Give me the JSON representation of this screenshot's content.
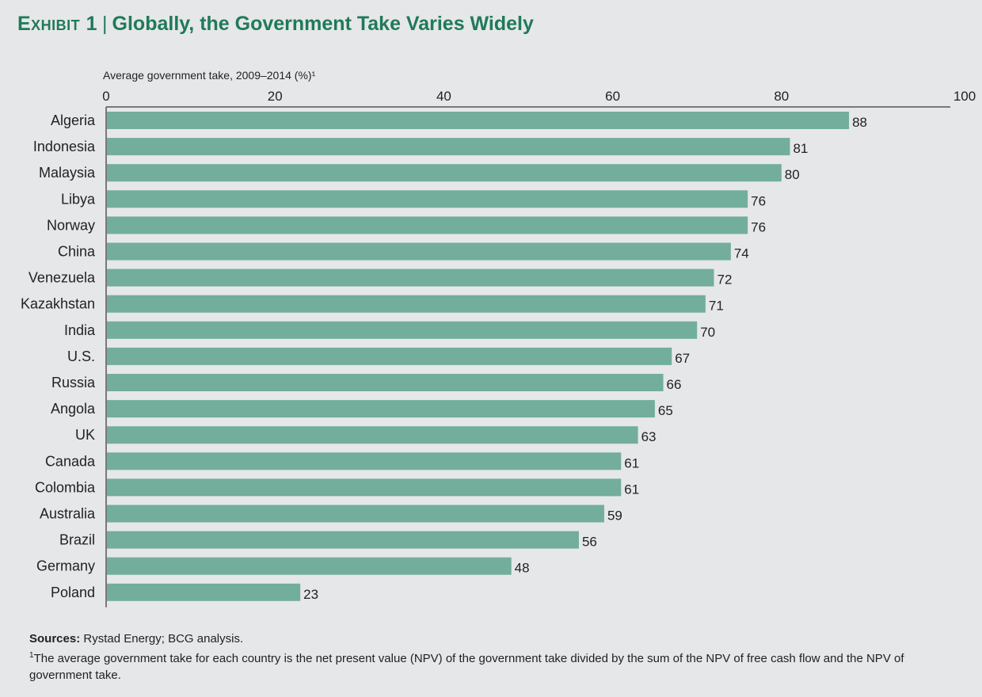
{
  "exhibit_label": "Exhibit 1",
  "title": "Globally, the Government Take Varies Widely",
  "chart_data": {
    "type": "bar",
    "orientation": "horizontal",
    "axis_label": "Average government take, 2009–2014 (%)¹",
    "xlim": [
      0,
      100
    ],
    "ticks": [
      0,
      20,
      40,
      60,
      80,
      100
    ],
    "bar_color": "#72ae9b",
    "categories": [
      "Algeria",
      "Indonesia",
      "Malaysia",
      "Libya",
      "Norway",
      "China",
      "Venezuela",
      "Kazakhstan",
      "India",
      "U.S.",
      "Russia",
      "Angola",
      "UK",
      "Canada",
      "Colombia",
      "Australia",
      "Brazil",
      "Germany",
      "Poland"
    ],
    "values": [
      88,
      81,
      80,
      76,
      76,
      74,
      72,
      71,
      70,
      67,
      66,
      65,
      63,
      61,
      61,
      59,
      56,
      48,
      23
    ]
  },
  "footer": {
    "sources_label": "Sources:",
    "sources_text": "Rystad Energy; BCG analysis.",
    "footnote_marker": "1",
    "footnote_text": "The average government take for each country is the net present value (NPV) of the government take divided by the sum of the NPV of free cash flow and the NPV of government take."
  },
  "colors": {
    "title": "#1f7a5a",
    "background": "#e6e7e8",
    "bar": "#72ae9b",
    "axis": "#555555"
  }
}
